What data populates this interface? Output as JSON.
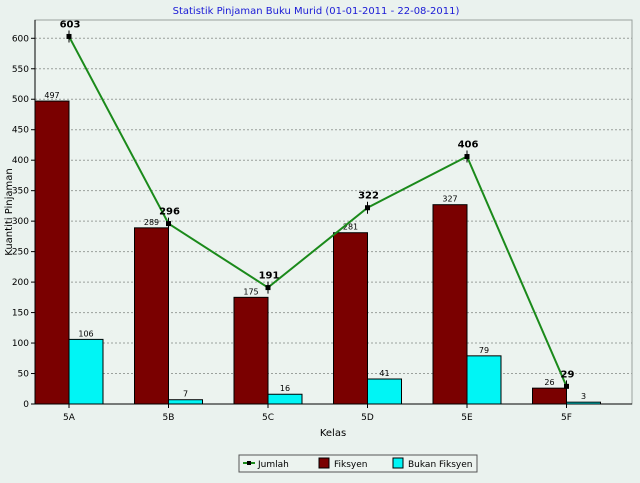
{
  "chart_data": {
    "type": "bar",
    "title": "Statistik Pinjaman Buku Murid (01-01-2011 - 22-08-2011)",
    "xlabel": "Kelas",
    "ylabel": "Kuantiti Pinjaman",
    "categories": [
      "5A",
      "5B",
      "5C",
      "5D",
      "5E",
      "5F"
    ],
    "ylim": [
      0,
      630
    ],
    "yticks": [
      0,
      50,
      100,
      150,
      200,
      250,
      300,
      350,
      400,
      450,
      500,
      550,
      600
    ],
    "grid": true,
    "legend_position": "bottom-right",
    "series": [
      {
        "name": "Jumlah",
        "kind": "line",
        "color": "#1b8a1b",
        "values": [
          603,
          296,
          191,
          322,
          406,
          29
        ]
      },
      {
        "name": "Fiksyen",
        "kind": "bar",
        "color": "#7a0000",
        "values": [
          497,
          289,
          175,
          281,
          327,
          26
        ]
      },
      {
        "name": "Bukan Fiksyen",
        "kind": "bar",
        "color": "#00f5f5",
        "values": [
          106,
          7,
          16,
          41,
          79,
          3
        ]
      }
    ]
  }
}
